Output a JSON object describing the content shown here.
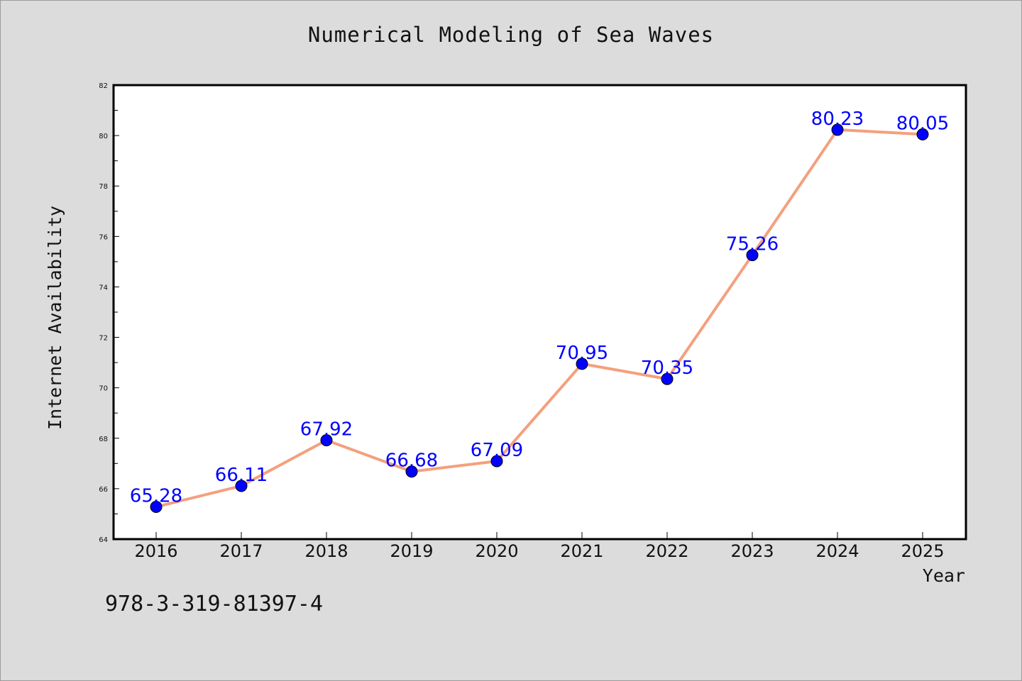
{
  "footer": {
    "code": "978-3-319-81397-4"
  },
  "chart_data": {
    "type": "line",
    "title": "Numerical Modeling of Sea Waves",
    "xlabel": "Year",
    "ylabel": "Internet Availability",
    "categories": [
      "2016",
      "2017",
      "2018",
      "2019",
      "2020",
      "2021",
      "2022",
      "2023",
      "2024",
      "2025"
    ],
    "values": [
      65.28,
      66.11,
      67.92,
      66.68,
      67.09,
      70.95,
      70.35,
      75.26,
      80.23,
      80.05
    ],
    "data_labels": [
      "65.28",
      "66.11",
      "67.92",
      "66.68",
      "67.09",
      "70.95",
      "70.35",
      "75.26",
      "80.23",
      "80.05"
    ],
    "ylim": [
      64,
      82
    ],
    "yticks": [
      64,
      66,
      68,
      70,
      72,
      74,
      76,
      78,
      80,
      82
    ],
    "grid": false,
    "colors": {
      "line": "#f4a07e",
      "marker": "#0000ff",
      "label": "#0000ff",
      "background": "#dcdcdc",
      "plot_bg": "#ffffff"
    }
  }
}
